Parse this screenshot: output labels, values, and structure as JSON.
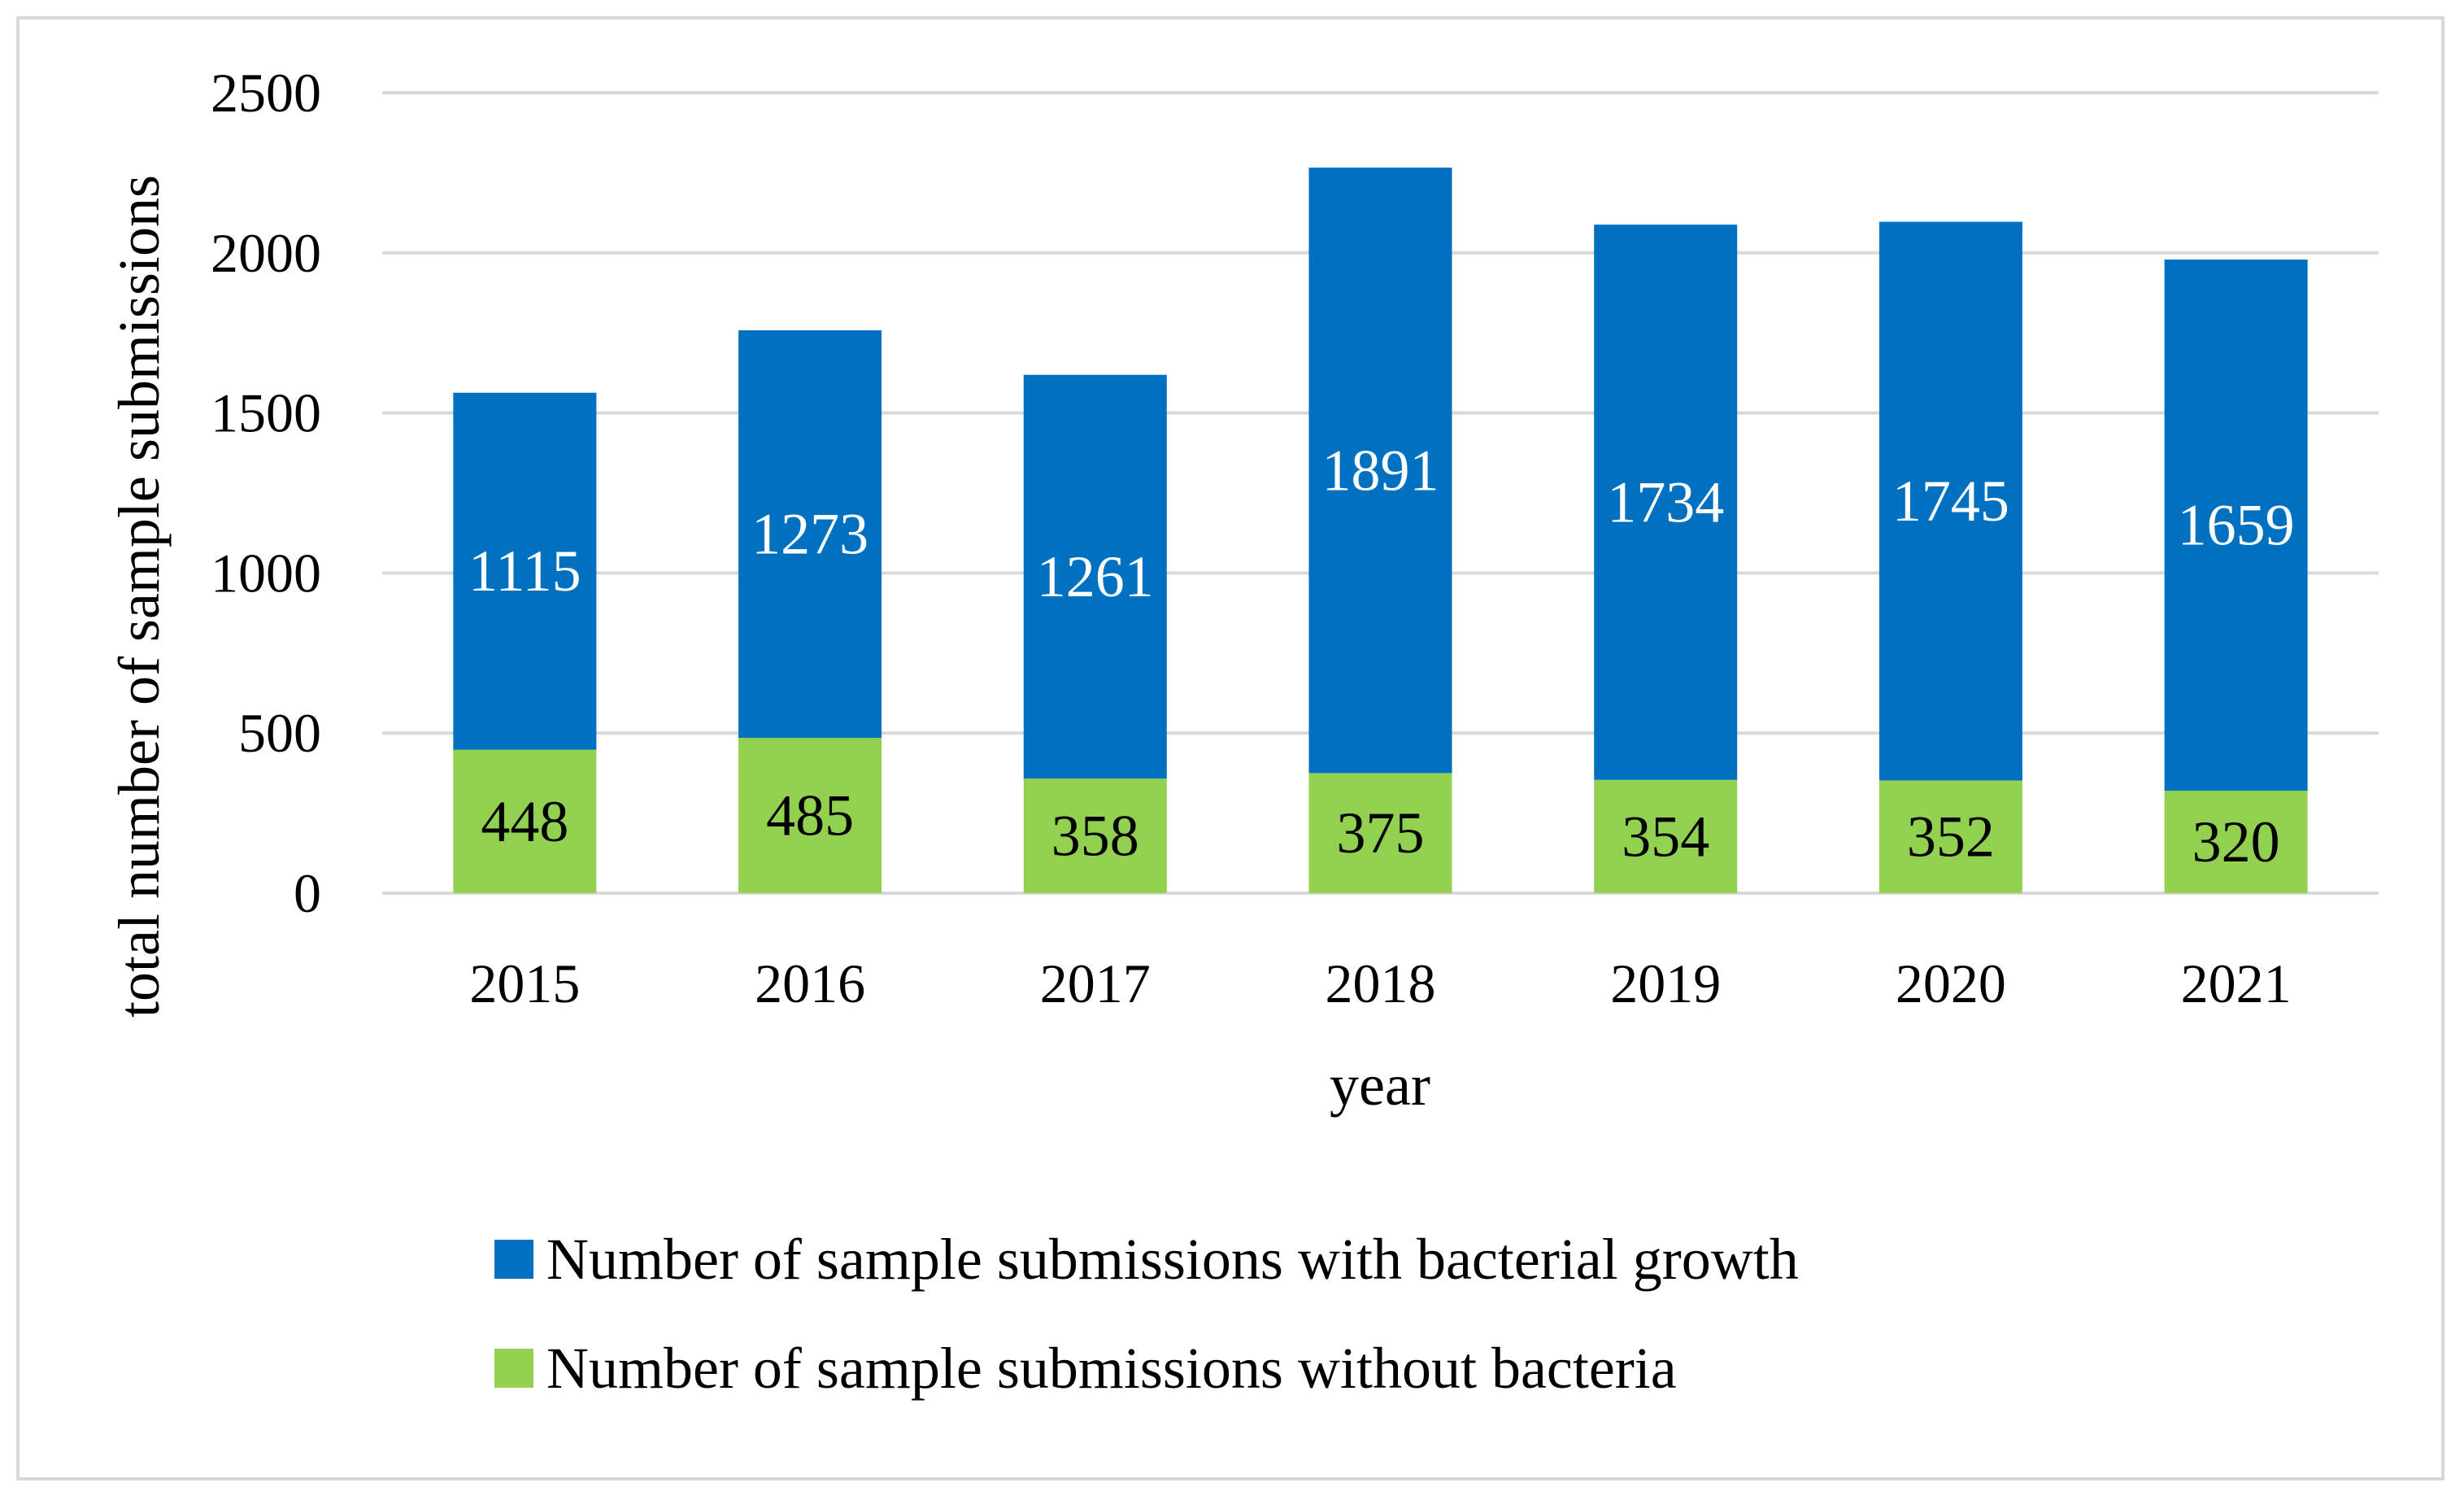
{
  "chart_data": {
    "type": "bar",
    "stacked": true,
    "title": "",
    "xlabel": "year",
    "ylabel": "total number of sample submissions",
    "ylim": [
      0,
      2500
    ],
    "yticks": [
      0,
      500,
      1000,
      1500,
      2000,
      2500
    ],
    "grid": true,
    "legend_position": "bottom",
    "categories": [
      "2015",
      "2016",
      "2017",
      "2018",
      "2019",
      "2020",
      "2021"
    ],
    "series": [
      {
        "name": "Number of sample submissions without bacteria",
        "color": "#92d050",
        "label_color": "#000000",
        "values": [
          448,
          485,
          358,
          375,
          354,
          352,
          320
        ]
      },
      {
        "name": "Number of sample submissions with bacterial growth",
        "color": "#0070c0",
        "label_color": "#ffffff",
        "values": [
          1115,
          1273,
          1261,
          1891,
          1734,
          1745,
          1659
        ]
      }
    ],
    "legend_order": [
      1,
      0
    ]
  },
  "colors": {
    "gridline": "#d9d9d9",
    "frame": "#d9d9d9"
  }
}
